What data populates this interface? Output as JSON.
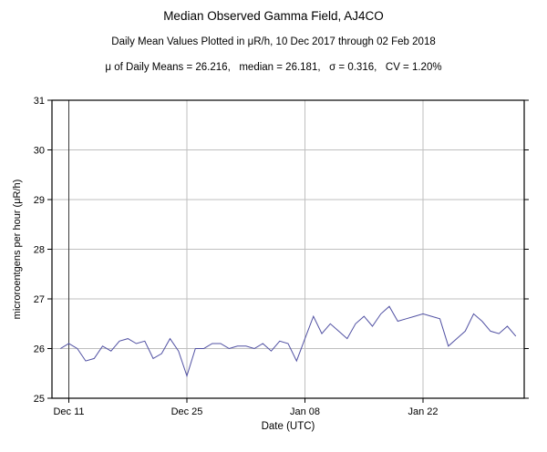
{
  "header": {
    "title": "Median Observed Gamma Field, AJ4CO",
    "subtitle": "Daily Mean Values Plotted in μR/h, 10 Dec 2017 through 02 Feb 2018",
    "stats": "μ of Daily Means = 26.216,   median = 26.181,   σ = 0.316,   CV = 1.20%"
  },
  "chart_data": {
    "type": "line",
    "title": "Median Observed Gamma Field, AJ4CO",
    "xlabel": "Date (UTC)",
    "ylabel": "microroentgens per hour (μR/h)",
    "ylim": [
      25,
      31
    ],
    "yticks": [
      25,
      26,
      27,
      28,
      29,
      30,
      31
    ],
    "xticks": [
      {
        "label": "Dec 11",
        "day": 1
      },
      {
        "label": "Dec 25",
        "day": 15
      },
      {
        "label": "Jan 08",
        "day": 29
      },
      {
        "label": "Jan 22",
        "day": 43
      }
    ],
    "x_unit": "days after 10 Dec 2017",
    "x_range_days": [
      -1,
      55
    ],
    "values": [
      26.0,
      26.1,
      26.0,
      25.75,
      25.8,
      26.05,
      25.95,
      26.15,
      26.2,
      26.1,
      26.15,
      25.8,
      25.9,
      26.2,
      25.95,
      25.45,
      26.0,
      26.0,
      26.1,
      26.1,
      26.0,
      26.05,
      26.05,
      26.0,
      26.1,
      25.95,
      26.15,
      26.1,
      25.75,
      26.2,
      26.65,
      26.3,
      26.5,
      26.35,
      26.2,
      26.5,
      26.65,
      26.45,
      26.7,
      26.85,
      26.55,
      26.6,
      26.65,
      26.7,
      26.65,
      26.6,
      26.05,
      26.2,
      26.35,
      26.7,
      26.55,
      26.35,
      26.3,
      26.45,
      26.25
    ],
    "line_color": "#5151a3",
    "grid_color": "#bfbfbf",
    "first_gridline_color": "#3a3a3a",
    "frame_color": "#000000",
    "legend": "none",
    "grid": "on"
  }
}
